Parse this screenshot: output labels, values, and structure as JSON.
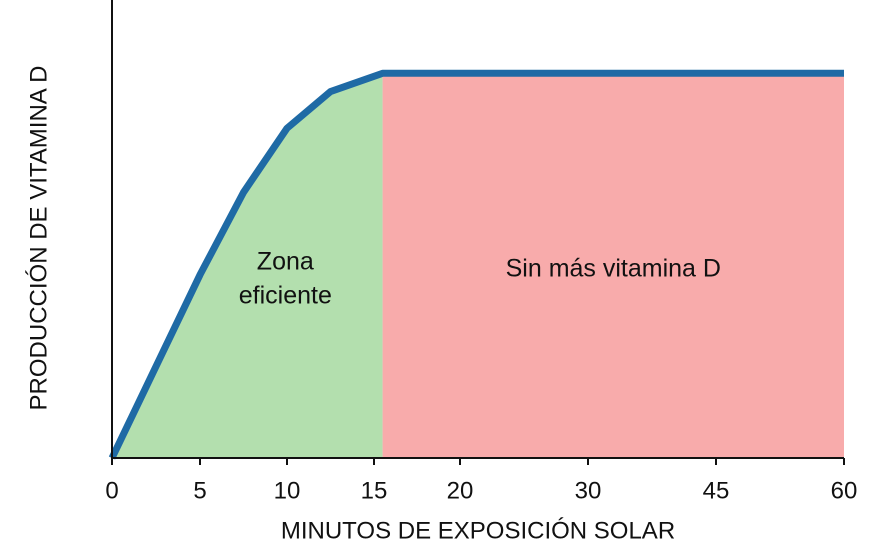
{
  "chart_data": {
    "type": "line",
    "xlabel": "MINUTOS DE EXPOSICIÓN SOLAR",
    "ylabel": "PRODUCCIÓN DE VITAMINA D",
    "x": [
      0,
      2.5,
      5,
      7.5,
      10,
      12.5,
      15.5,
      20,
      30,
      45,
      60
    ],
    "series": [
      {
        "color": "#1f6aa5",
        "values": [
          0,
          20,
          40,
          58,
          72,
          80,
          84,
          84,
          84,
          84,
          84
        ]
      }
    ],
    "xlim": [
      0,
      60
    ],
    "ylim": [
      0,
      100
    ],
    "xticks": [
      0,
      5,
      10,
      15,
      20,
      30,
      45,
      60
    ],
    "zones": [
      {
        "from": 0,
        "to": 15.5,
        "color": "#b3dfae",
        "label": [
          "Zona",
          "eficiente"
        ]
      },
      {
        "from": 15.5,
        "to": 60,
        "color": "#f8abab",
        "label": [
          "Sin más vitamina D"
        ]
      }
    ]
  }
}
